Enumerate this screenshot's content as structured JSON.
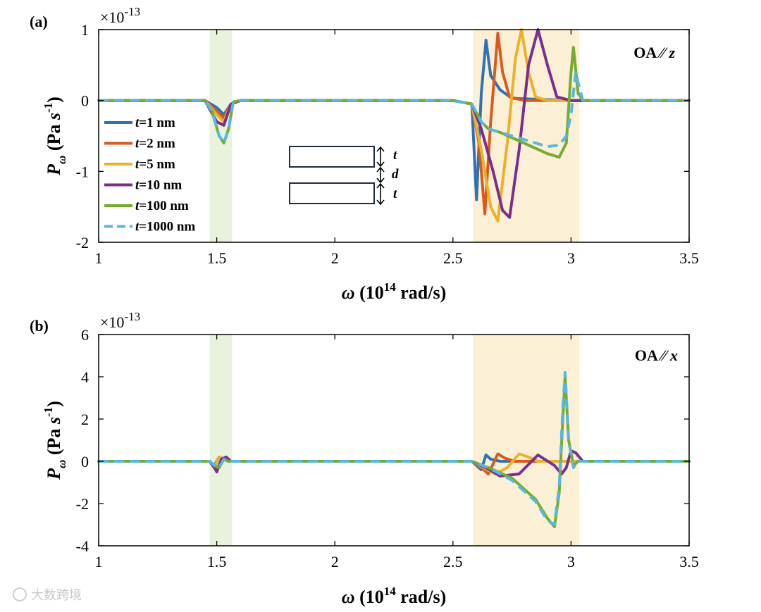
{
  "chart_data": [
    {
      "type": "line",
      "panel_label": "(a)",
      "exponent_label": "×10",
      "exponent_power": "-13",
      "annotation": {
        "prefix": "OA ∕∕ ",
        "axis": "z"
      },
      "xlabel": {
        "symbol": "ω",
        "text": " (10",
        "power": "14",
        "unit": " rad/s)"
      },
      "ylabel": {
        "symbol": "P",
        "sub": "ω",
        "text": " (Pa ",
        "s": "s",
        "power": "-1",
        "close": ")"
      },
      "xlim": [
        1,
        3.5
      ],
      "ylim": [
        -2,
        1
      ],
      "xticks": [
        "1",
        "1.5",
        "2",
        "2.5",
        "3",
        "3.5"
      ],
      "yticks": [
        "1",
        "0",
        "-1",
        "-2"
      ],
      "ytick_values": [
        1,
        0,
        -1,
        -2
      ],
      "bands": [
        {
          "name": "green-band",
          "from": 1.47,
          "to": 1.565,
          "color": "#e9f2dc"
        },
        {
          "name": "orange-band",
          "from": 2.585,
          "to": 3.035,
          "color": "#fbf0d6"
        }
      ],
      "schematic": {
        "labels": [
          "t",
          "d",
          "t"
        ]
      },
      "series": [
        {
          "name": "t=1 nm",
          "var": "t",
          "rest": "=1 nm",
          "color": "#2f72b4",
          "dash": false,
          "x": [
            1,
            1.45,
            1.5,
            1.53,
            1.56,
            1.6,
            2.5,
            2.58,
            2.6,
            2.62,
            2.64,
            2.66,
            2.7,
            2.75,
            3,
            3.5
          ],
          "y": [
            0,
            0,
            -0.1,
            -0.2,
            -0.05,
            0,
            0,
            -0.05,
            -1.4,
            0.1,
            0.85,
            0.35,
            0.15,
            0.03,
            0,
            0
          ]
        },
        {
          "name": "t=2 nm",
          "var": "t",
          "rest": "=2 nm",
          "color": "#d95a1e",
          "dash": false,
          "x": [
            1,
            1.45,
            1.5,
            1.53,
            1.56,
            1.6,
            2.5,
            2.58,
            2.61,
            2.635,
            2.66,
            2.69,
            2.71,
            2.74,
            2.8,
            3,
            3.5
          ],
          "y": [
            0,
            0,
            -0.15,
            -0.25,
            -0.05,
            0,
            0,
            -0.05,
            -0.6,
            -1.6,
            -0.3,
            0.95,
            0.4,
            0.05,
            0,
            0,
            0
          ]
        },
        {
          "name": "t=5 nm",
          "var": "t",
          "rest": "=5 nm",
          "color": "#ebb12b",
          "dash": false,
          "x": [
            1,
            1.45,
            1.5,
            1.53,
            1.56,
            1.6,
            2.5,
            2.58,
            2.62,
            2.66,
            2.69,
            2.73,
            2.765,
            2.79,
            2.82,
            2.85,
            2.9,
            3,
            3.5
          ],
          "y": [
            0,
            0,
            -0.2,
            -0.3,
            -0.05,
            0,
            0,
            -0.05,
            -0.7,
            -1.5,
            -1.7,
            -0.6,
            0.6,
            1.0,
            0.4,
            0.05,
            0,
            0,
            0
          ]
        },
        {
          "name": "t=10 nm",
          "var": "t",
          "rest": "=10 nm",
          "color": "#7b2e8c",
          "dash": false,
          "x": [
            1,
            1.45,
            1.5,
            1.53,
            1.56,
            1.6,
            2.5,
            2.58,
            2.62,
            2.67,
            2.71,
            2.74,
            2.78,
            2.82,
            2.86,
            2.9,
            2.94,
            3,
            3.5
          ],
          "y": [
            0,
            0,
            -0.3,
            -0.35,
            -0.05,
            0,
            0,
            -0.05,
            -0.4,
            -1.0,
            -1.55,
            -1.65,
            -0.7,
            0.5,
            1.0,
            0.5,
            0.05,
            0,
            0
          ]
        },
        {
          "name": "t=100 nm",
          "var": "t",
          "rest": "=100 nm",
          "color": "#76ab2f",
          "dash": false,
          "x": [
            1,
            1.45,
            1.48,
            1.51,
            1.53,
            1.55,
            1.57,
            1.6,
            2.5,
            2.58,
            2.62,
            2.65,
            2.7,
            2.8,
            2.9,
            2.95,
            2.98,
            3.0,
            3.01,
            3.03,
            3.05,
            3.5
          ],
          "y": [
            0,
            0,
            -0.15,
            -0.5,
            -0.6,
            -0.4,
            -0.02,
            0,
            0,
            -0.05,
            -0.3,
            -0.4,
            -0.45,
            -0.6,
            -0.75,
            -0.8,
            -0.6,
            0.4,
            0.75,
            0.1,
            0,
            0
          ]
        },
        {
          "name": "t=1000 nm",
          "var": "t",
          "rest": "=1000 nm",
          "color": "#56b8e2",
          "dash": true,
          "x": [
            1,
            1.45,
            1.48,
            1.51,
            1.53,
            1.55,
            1.57,
            1.6,
            2.5,
            2.58,
            2.62,
            2.65,
            2.7,
            2.8,
            2.9,
            2.95,
            2.98,
            3.0,
            3.02,
            3.03,
            3.05,
            3.5
          ],
          "y": [
            0,
            0,
            -0.15,
            -0.5,
            -0.6,
            -0.4,
            -0.02,
            0,
            0,
            -0.05,
            -0.3,
            -0.4,
            -0.45,
            -0.55,
            -0.65,
            -0.63,
            -0.5,
            -0.2,
            0.4,
            0.25,
            0,
            0
          ]
        }
      ]
    },
    {
      "type": "line",
      "panel_label": "(b)",
      "exponent_label": "×10",
      "exponent_power": "-13",
      "annotation": {
        "prefix": "OA ∕∕ ",
        "axis": "x"
      },
      "xlabel": {
        "symbol": "ω",
        "text": " (10",
        "power": "14",
        "unit": " rad/s)"
      },
      "ylabel": {
        "symbol": "P",
        "sub": "ω",
        "text": " (Pa ",
        "s": "s",
        "power": "-1",
        "close": ")"
      },
      "xlim": [
        1,
        3.5
      ],
      "ylim": [
        -4,
        6
      ],
      "xticks": [
        "1",
        "1.5",
        "2",
        "2.5",
        "3",
        "3.5"
      ],
      "yticks": [
        "6",
        "4",
        "2",
        "0",
        "-2",
        "-4"
      ],
      "ytick_values": [
        6,
        4,
        2,
        0,
        -2,
        -4
      ],
      "bands": [
        {
          "name": "green-band",
          "from": 1.47,
          "to": 1.565,
          "color": "#e9f2dc"
        },
        {
          "name": "orange-band",
          "from": 2.585,
          "to": 3.035,
          "color": "#fbf0d6"
        }
      ],
      "series": [
        {
          "name": "t=1 nm",
          "color": "#2f72b4",
          "dash": false,
          "x": [
            1,
            1.47,
            1.49,
            1.51,
            1.53,
            1.55,
            2.58,
            2.6,
            2.62,
            2.64,
            2.66,
            2.7,
            3,
            3.5
          ],
          "y": [
            0,
            0,
            -0.2,
            0.2,
            0.1,
            0,
            0,
            -0.2,
            -0.4,
            0.3,
            0.1,
            0,
            0,
            0
          ]
        },
        {
          "name": "t=2 nm",
          "color": "#d95a1e",
          "dash": false,
          "x": [
            1,
            1.47,
            1.49,
            1.51,
            1.53,
            1.55,
            2.58,
            2.62,
            2.65,
            2.69,
            2.72,
            2.76,
            3,
            3.5
          ],
          "y": [
            0,
            0,
            -0.3,
            0.2,
            0.1,
            0,
            0,
            -0.3,
            -0.6,
            0.35,
            0.15,
            0,
            0,
            0
          ]
        },
        {
          "name": "t=5 nm",
          "color": "#ebb12b",
          "dash": false,
          "x": [
            1,
            1.47,
            1.49,
            1.51,
            1.53,
            1.55,
            2.58,
            2.63,
            2.68,
            2.73,
            2.78,
            2.82,
            2.86,
            3,
            3.5
          ],
          "y": [
            0,
            0,
            -0.3,
            0.2,
            0.1,
            0,
            0,
            -0.3,
            -0.6,
            -0.3,
            0.35,
            0.2,
            0,
            0,
            0
          ]
        },
        {
          "name": "t=10 nm",
          "color": "#7b2e8c",
          "dash": false,
          "x": [
            1,
            1.47,
            1.49,
            1.5,
            1.52,
            1.54,
            1.56,
            2.58,
            2.64,
            2.7,
            2.78,
            2.86,
            2.93,
            2.96,
            2.98,
            3.0,
            3.02,
            3.05,
            3.5
          ],
          "y": [
            0,
            0,
            -0.3,
            -0.5,
            0.1,
            0.2,
            0,
            0,
            -0.3,
            -0.7,
            -0.6,
            0.3,
            -0.2,
            -0.6,
            -0.3,
            0.5,
            0.4,
            0,
            0
          ]
        },
        {
          "name": "t=100 nm",
          "color": "#76ab2f",
          "dash": false,
          "x": [
            1,
            1.47,
            1.49,
            1.51,
            1.53,
            1.55,
            2.58,
            2.65,
            2.75,
            2.85,
            2.9,
            2.93,
            2.95,
            2.965,
            2.975,
            2.99,
            3.01,
            3.03,
            3.5
          ],
          "y": [
            0,
            0,
            -0.2,
            -0.3,
            0.1,
            0,
            0,
            -0.3,
            -0.8,
            -1.8,
            -2.7,
            -3.1,
            -1.5,
            2.0,
            4.0,
            1.0,
            -0.2,
            0,
            0
          ]
        },
        {
          "name": "t=1000 nm",
          "color": "#56b8e2",
          "dash": true,
          "x": [
            1,
            1.47,
            1.49,
            1.51,
            1.53,
            1.55,
            2.58,
            2.65,
            2.75,
            2.85,
            2.9,
            2.93,
            2.95,
            2.965,
            2.975,
            2.99,
            3.01,
            3.03,
            3.5
          ],
          "y": [
            0,
            0,
            -0.2,
            -0.3,
            0.1,
            0,
            0,
            -0.3,
            -0.9,
            -1.9,
            -2.8,
            -3.0,
            -1.2,
            2.5,
            4.2,
            1.0,
            -0.3,
            0,
            0
          ]
        }
      ]
    }
  ],
  "watermark": "大数跨境"
}
